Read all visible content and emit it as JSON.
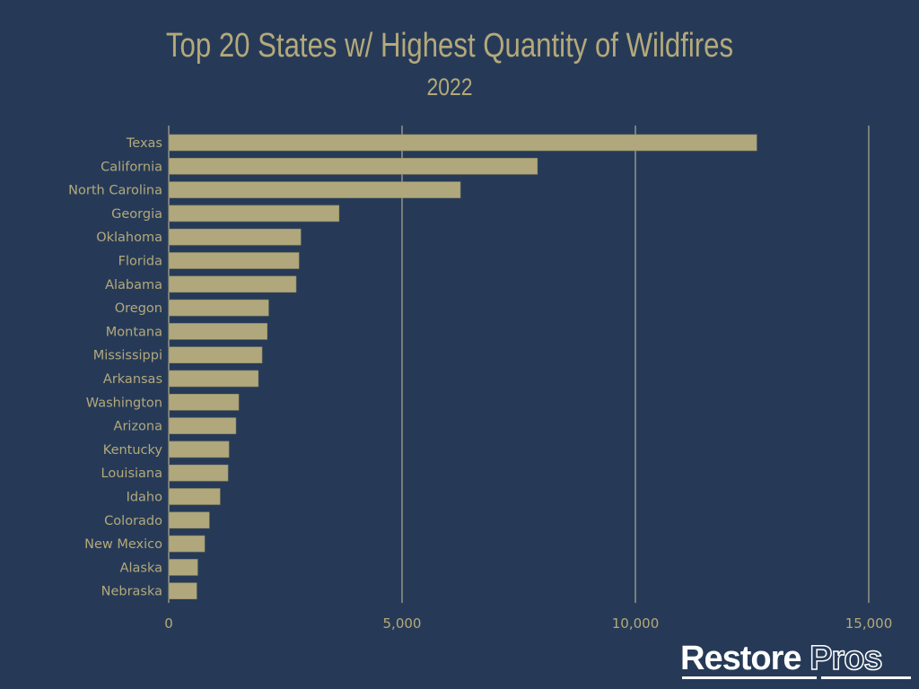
{
  "chart_data": {
    "type": "bar",
    "orientation": "horizontal",
    "title": "Top 20 States w/ Highest Quantity of Wildfires",
    "subtitle": "2022",
    "categories": [
      "Texas",
      "California",
      "North Carolina",
      "Georgia",
      "Oklahoma",
      "Florida",
      "Alabama",
      "Oregon",
      "Montana",
      "Mississippi",
      "Arkansas",
      "Washington",
      "Arizona",
      "Kentucky",
      "Louisiana",
      "Idaho",
      "Colorado",
      "New Mexico",
      "Alaska",
      "Nebraska"
    ],
    "values": [
      12600,
      7900,
      6250,
      3650,
      2830,
      2790,
      2730,
      2140,
      2110,
      2000,
      1920,
      1500,
      1440,
      1290,
      1270,
      1100,
      870,
      770,
      620,
      600
    ],
    "xlim": [
      0,
      15000
    ],
    "xticks": [
      0,
      5000,
      10000,
      15000
    ],
    "xtick_labels": [
      "0",
      "5,000",
      "10,000",
      "15,000"
    ],
    "grid": "vertical",
    "bar_color": "#b0a87c",
    "background_color": "#263a58",
    "text_color": "#b4a979"
  },
  "logo": {
    "text": "Restore Pros"
  }
}
